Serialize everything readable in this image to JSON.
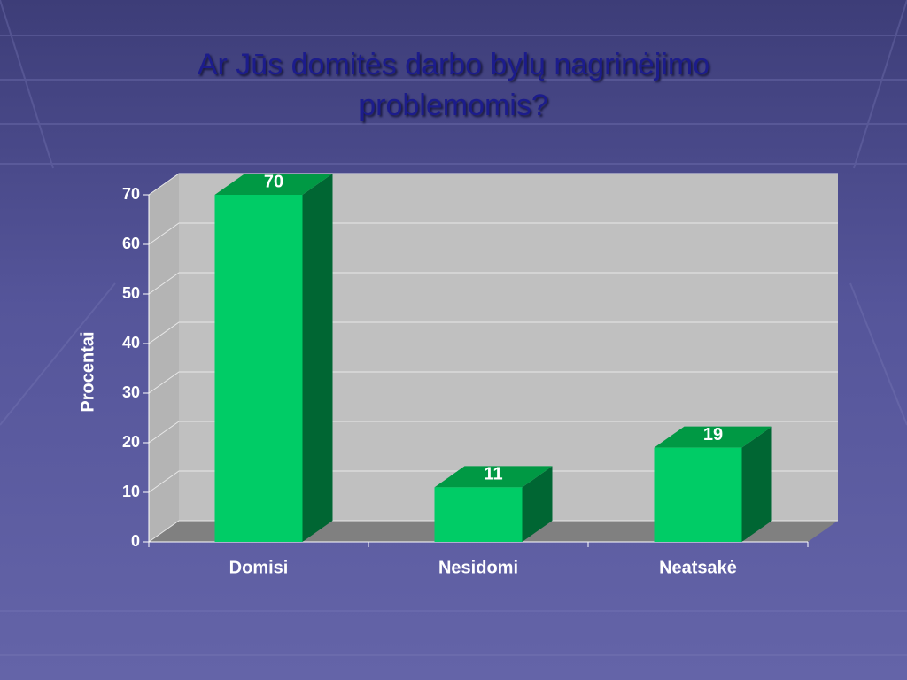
{
  "chart_data": {
    "type": "bar3d",
    "title": "Ar Jūs domitės darbo bylų nagrinėjimo problemomis?",
    "y_label": "Procentai",
    "categories": [
      "Domisi",
      "Nesidomi",
      "Neatsakė"
    ],
    "values": [
      70,
      11,
      19
    ],
    "color": "#00cc66",
    "ylim": [
      0,
      70
    ],
    "yticks": [
      0,
      10,
      20,
      30,
      40,
      50,
      60,
      70
    ],
    "grid": true
  }
}
